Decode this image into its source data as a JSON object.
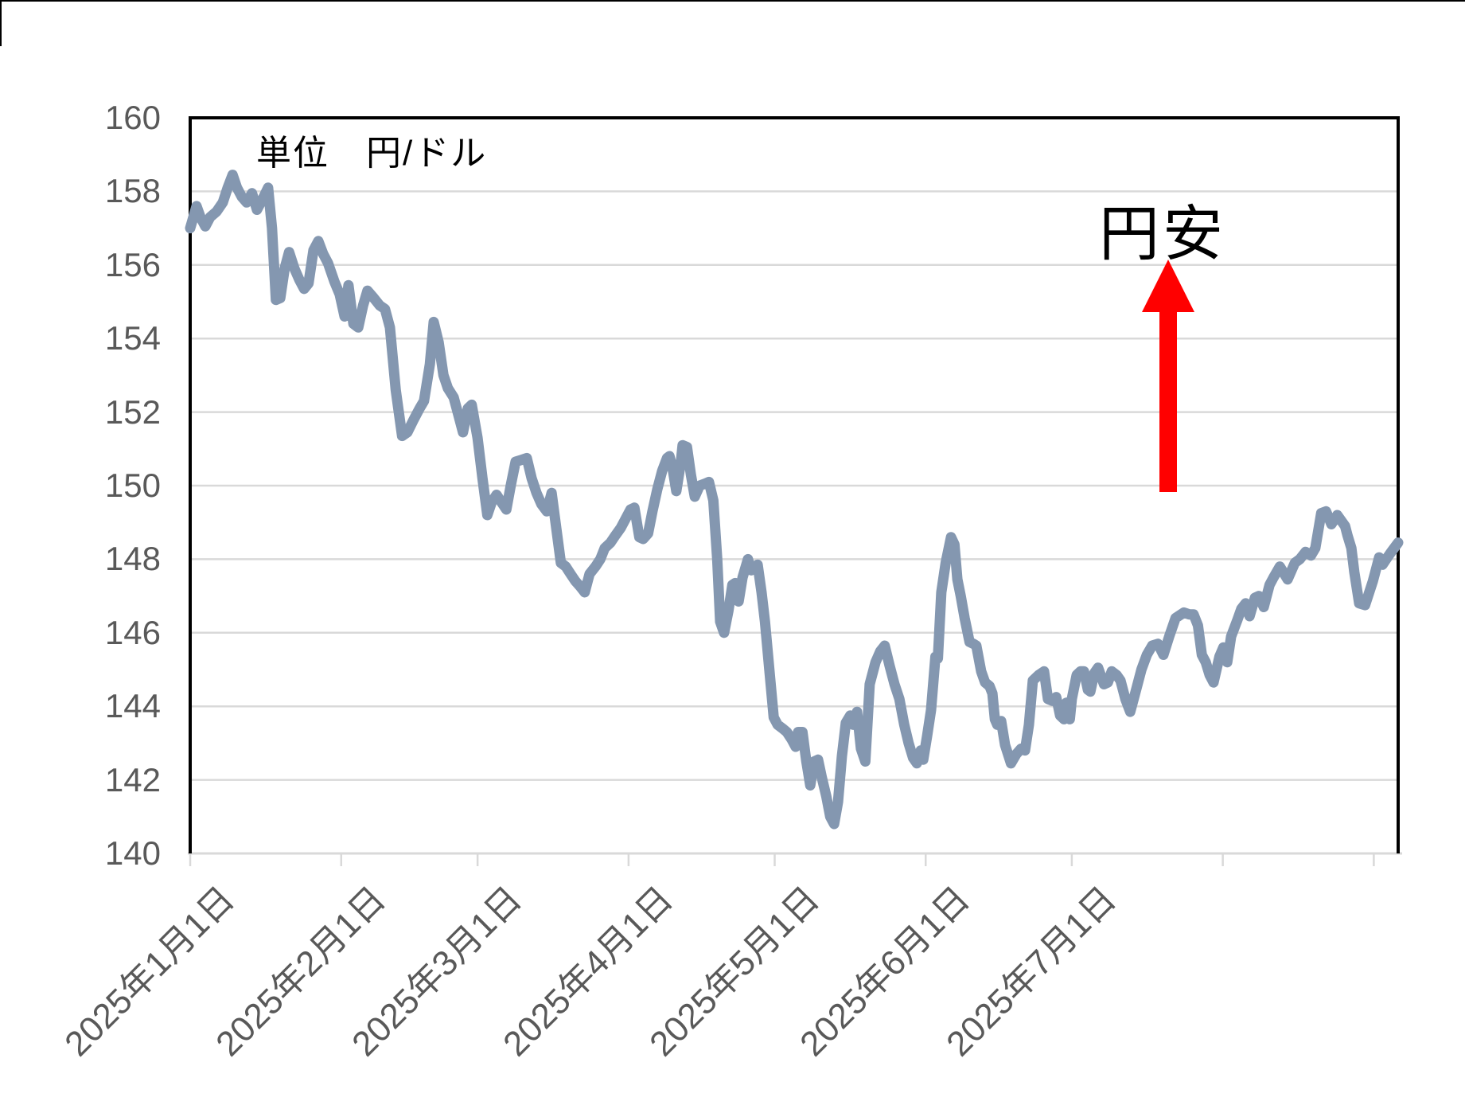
{
  "page": {
    "background": "#FFFFFF"
  },
  "unit_label": "単位　円/ドル",
  "annotation": {
    "text": "円安",
    "arrow_color": "#FF0000"
  },
  "chart_data": {
    "type": "line",
    "title": "",
    "xlabel": "",
    "ylabel": "円/ドル",
    "grid": {
      "color": "#D9D9D9",
      "horizontal": true,
      "vertical": false
    },
    "plot_border_color": "#000000",
    "x_axis": {
      "start_date": "2025-01-01",
      "unit": "days_since_start",
      "day_span": 248,
      "tick_day_offsets": [
        0,
        31,
        59,
        90,
        120,
        151,
        181,
        212,
        243
      ],
      "tick_labels": [
        "2025年1月1日",
        "2025年2月1日",
        "2025年3月1日",
        "2025年4月1日",
        "2025年5月1日",
        "2025年6月1日",
        "2025年7月1日",
        "",
        ""
      ],
      "label_color": "#595959",
      "label_rotation_deg": 45,
      "axis_line_color": "#D9D9D9"
    },
    "y_axis": {
      "min": 140,
      "max": 160,
      "step": 2,
      "tick_labels": [
        "140",
        "142",
        "144",
        "146",
        "148",
        "150",
        "152",
        "154",
        "156",
        "158",
        "160"
      ],
      "label_color": "#595959"
    },
    "series": [
      {
        "name": "円/ドル",
        "color": "#8497B0",
        "points": [
          [
            0,
            157.0
          ],
          [
            1.3,
            157.6
          ],
          [
            2.1,
            157.3
          ],
          [
            3.1,
            157.05
          ],
          [
            4.1,
            157.3
          ],
          [
            5.4,
            157.45
          ],
          [
            6.7,
            157.7
          ],
          [
            7.7,
            158.1
          ],
          [
            8.7,
            158.45
          ],
          [
            9.6,
            158.1
          ],
          [
            10.6,
            157.85
          ],
          [
            11.6,
            157.7
          ],
          [
            12.7,
            157.95
          ],
          [
            13.7,
            157.5
          ],
          [
            14.9,
            157.8
          ],
          [
            16,
            158.1
          ],
          [
            16.8,
            157.0
          ],
          [
            17.6,
            155.05
          ],
          [
            18.5,
            155.1
          ],
          [
            19.4,
            155.9
          ],
          [
            20.3,
            156.35
          ],
          [
            21.4,
            155.9
          ],
          [
            22.4,
            155.6
          ],
          [
            23.4,
            155.35
          ],
          [
            24.3,
            155.5
          ],
          [
            25.3,
            156.4
          ],
          [
            26.3,
            156.65
          ],
          [
            27.3,
            156.3
          ],
          [
            28.3,
            156.05
          ],
          [
            29.6,
            155.55
          ],
          [
            30.7,
            155.2
          ],
          [
            31.7,
            154.6
          ],
          [
            32.5,
            155.45
          ],
          [
            33.5,
            154.4
          ],
          [
            34.5,
            154.3
          ],
          [
            35.5,
            154.9
          ],
          [
            36.4,
            155.3
          ],
          [
            37.7,
            155.1
          ],
          [
            38.9,
            154.9
          ],
          [
            40,
            154.8
          ],
          [
            41,
            154.3
          ],
          [
            42.2,
            152.6
          ],
          [
            43.5,
            151.35
          ],
          [
            44.6,
            151.45
          ],
          [
            45.9,
            151.8
          ],
          [
            47.1,
            152.1
          ],
          [
            48,
            152.3
          ],
          [
            49.2,
            153.3
          ],
          [
            50,
            154.45
          ],
          [
            51,
            153.9
          ],
          [
            52,
            153.0
          ],
          [
            52.9,
            152.65
          ],
          [
            54.1,
            152.4
          ],
          [
            55.1,
            151.9
          ],
          [
            56,
            151.45
          ],
          [
            57,
            152.1
          ],
          [
            57.8,
            152.2
          ],
          [
            59,
            151.3
          ],
          [
            60,
            150.2
          ],
          [
            61,
            149.2
          ],
          [
            61.9,
            149.55
          ],
          [
            62.9,
            149.75
          ],
          [
            63.9,
            149.55
          ],
          [
            64.9,
            149.35
          ],
          [
            65.8,
            150.0
          ],
          [
            66.8,
            150.65
          ],
          [
            68,
            150.7
          ],
          [
            69.1,
            150.75
          ],
          [
            70.1,
            150.2
          ],
          [
            71.1,
            149.8
          ],
          [
            72.1,
            149.5
          ],
          [
            73.2,
            149.3
          ],
          [
            74.2,
            149.8
          ],
          [
            75.2,
            148.8
          ],
          [
            76.1,
            147.9
          ],
          [
            77.1,
            147.8
          ],
          [
            78.1,
            147.6
          ],
          [
            79.1,
            147.4
          ],
          [
            80.1,
            147.25
          ],
          [
            81,
            147.1
          ],
          [
            82,
            147.6
          ],
          [
            83.2,
            147.8
          ],
          [
            84.2,
            148.0
          ],
          [
            85.1,
            148.3
          ],
          [
            86.3,
            148.45
          ],
          [
            87.3,
            148.65
          ],
          [
            88.4,
            148.85
          ],
          [
            89.4,
            149.1
          ],
          [
            90.4,
            149.35
          ],
          [
            91.2,
            149.4
          ],
          [
            92.2,
            148.6
          ],
          [
            93,
            148.55
          ],
          [
            94,
            148.7
          ],
          [
            94.9,
            149.3
          ],
          [
            95.9,
            149.9
          ],
          [
            96.9,
            150.4
          ],
          [
            97.9,
            150.75
          ],
          [
            98.4,
            150.8
          ],
          [
            99,
            150.5
          ],
          [
            99.8,
            149.85
          ],
          [
            100.7,
            150.6
          ],
          [
            101.1,
            151.1
          ],
          [
            102,
            151.05
          ],
          [
            102.8,
            150.3
          ],
          [
            103.6,
            149.7
          ],
          [
            104.6,
            150.0
          ],
          [
            105.6,
            150.05
          ],
          [
            106.5,
            150.1
          ],
          [
            107.4,
            149.6
          ],
          [
            108.2,
            148.0
          ],
          [
            108.8,
            146.3
          ],
          [
            109.6,
            146.0
          ],
          [
            110.5,
            146.6
          ],
          [
            111.3,
            147.3
          ],
          [
            111.9,
            147.35
          ],
          [
            112.6,
            146.85
          ],
          [
            113.4,
            147.5
          ],
          [
            114.5,
            148.0
          ],
          [
            115.2,
            147.7
          ],
          [
            115.9,
            147.75
          ],
          [
            116.5,
            147.85
          ],
          [
            117.3,
            147.1
          ],
          [
            118,
            146.3
          ],
          [
            119,
            144.85
          ],
          [
            119.8,
            143.7
          ],
          [
            120.6,
            143.5
          ],
          [
            121.6,
            143.4
          ],
          [
            122.5,
            143.3
          ],
          [
            123.5,
            143.1
          ],
          [
            124.3,
            142.9
          ],
          [
            124.8,
            143.3
          ],
          [
            125.7,
            143.3
          ],
          [
            126.5,
            142.5
          ],
          [
            127.3,
            141.85
          ],
          [
            128.1,
            142.5
          ],
          [
            128.9,
            142.55
          ],
          [
            129.7,
            142.05
          ],
          [
            130.6,
            141.55
          ],
          [
            131.4,
            141.0
          ],
          [
            132.2,
            140.8
          ],
          [
            133,
            141.4
          ],
          [
            133.8,
            142.65
          ],
          [
            134.6,
            143.55
          ],
          [
            135.5,
            143.75
          ],
          [
            136.1,
            143.5
          ],
          [
            136.9,
            143.85
          ],
          [
            137.7,
            142.85
          ],
          [
            138.6,
            142.5
          ],
          [
            139.5,
            144.6
          ],
          [
            140.7,
            145.2
          ],
          [
            141.7,
            145.5
          ],
          [
            142.6,
            145.65
          ],
          [
            143.6,
            145.1
          ],
          [
            144.6,
            144.6
          ],
          [
            145.6,
            144.2
          ],
          [
            146.6,
            143.5
          ],
          [
            147.5,
            143.0
          ],
          [
            148.4,
            142.6
          ],
          [
            149.2,
            142.45
          ],
          [
            150,
            142.8
          ],
          [
            150.5,
            142.55
          ],
          [
            151.3,
            143.2
          ],
          [
            152.1,
            143.9
          ],
          [
            153,
            145.35
          ],
          [
            153.5,
            145.3
          ],
          [
            154.2,
            147.1
          ],
          [
            155.1,
            147.9
          ],
          [
            156.2,
            148.6
          ],
          [
            156.9,
            148.4
          ],
          [
            157.5,
            147.45
          ],
          [
            158.2,
            147.0
          ],
          [
            159,
            146.4
          ],
          [
            160,
            145.75
          ],
          [
            160.8,
            145.7
          ],
          [
            161.4,
            145.65
          ],
          [
            162.4,
            144.95
          ],
          [
            163.2,
            144.65
          ],
          [
            164.1,
            144.55
          ],
          [
            164.7,
            144.35
          ],
          [
            165.2,
            143.65
          ],
          [
            165.7,
            143.5
          ],
          [
            166.5,
            143.6
          ],
          [
            167.3,
            142.95
          ],
          [
            168.5,
            142.45
          ],
          [
            169.6,
            142.7
          ],
          [
            170.6,
            142.85
          ],
          [
            171.4,
            142.8
          ],
          [
            172.2,
            143.5
          ],
          [
            173,
            144.7
          ],
          [
            174.2,
            144.85
          ],
          [
            175.3,
            144.95
          ],
          [
            176.1,
            144.2
          ],
          [
            177,
            144.15
          ],
          [
            177.8,
            144.25
          ],
          [
            178.6,
            143.75
          ],
          [
            179.4,
            143.65
          ],
          [
            179.9,
            144.1
          ],
          [
            180.6,
            143.65
          ],
          [
            181,
            144.2
          ],
          [
            182,
            144.85
          ],
          [
            182.8,
            144.95
          ],
          [
            183.5,
            144.95
          ],
          [
            184.3,
            144.45
          ],
          [
            184.8,
            144.4
          ],
          [
            185.6,
            144.9
          ],
          [
            186.4,
            145.05
          ],
          [
            187.6,
            144.6
          ],
          [
            188.4,
            144.65
          ],
          [
            189.2,
            144.95
          ],
          [
            190.2,
            144.85
          ],
          [
            191,
            144.7
          ],
          [
            192,
            144.2
          ],
          [
            193,
            143.85
          ],
          [
            194.1,
            144.4
          ],
          [
            195.3,
            145.0
          ],
          [
            196.4,
            145.4
          ],
          [
            197.5,
            145.65
          ],
          [
            198.7,
            145.7
          ],
          [
            199.8,
            145.4
          ],
          [
            201,
            145.9
          ],
          [
            202.3,
            146.4
          ],
          [
            204,
            146.55
          ],
          [
            205.1,
            146.5
          ],
          [
            206,
            146.5
          ],
          [
            206.9,
            146.2
          ],
          [
            207.7,
            145.4
          ],
          [
            208.5,
            145.2
          ],
          [
            209.3,
            144.85
          ],
          [
            210.1,
            144.65
          ],
          [
            211.3,
            145.35
          ],
          [
            212.1,
            145.6
          ],
          [
            212.9,
            145.2
          ],
          [
            213.7,
            145.9
          ],
          [
            215,
            146.35
          ],
          [
            215.8,
            146.65
          ],
          [
            216.7,
            146.8
          ],
          [
            217.5,
            146.45
          ],
          [
            218.6,
            146.95
          ],
          [
            219.4,
            147.0
          ],
          [
            220.4,
            146.7
          ],
          [
            221.6,
            147.3
          ],
          [
            222.4,
            147.5
          ],
          [
            223.7,
            147.8
          ],
          [
            225.3,
            147.45
          ],
          [
            226.8,
            147.9
          ],
          [
            227.8,
            148.0
          ],
          [
            229,
            148.2
          ],
          [
            230.1,
            148.1
          ],
          [
            231,
            148.3
          ],
          [
            232.2,
            149.25
          ],
          [
            233.2,
            149.3
          ],
          [
            234.3,
            148.95
          ],
          [
            235.5,
            149.2
          ],
          [
            237.1,
            148.9
          ],
          [
            237.6,
            148.65
          ],
          [
            238.4,
            148.3
          ],
          [
            239,
            147.65
          ],
          [
            240,
            146.8
          ],
          [
            241.2,
            146.75
          ],
          [
            242.8,
            147.4
          ],
          [
            244.1,
            148.05
          ],
          [
            244.8,
            147.85
          ],
          [
            245.8,
            148.05
          ],
          [
            246.6,
            148.2
          ],
          [
            248,
            148.45
          ]
        ]
      }
    ]
  }
}
